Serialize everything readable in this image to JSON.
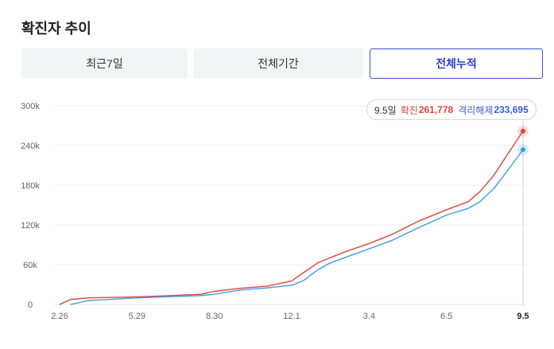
{
  "page_title": "확진자 추이",
  "tabs": [
    {
      "label": "최근7일",
      "active": false
    },
    {
      "label": "전체기간",
      "active": false
    },
    {
      "label": "전체누적",
      "active": true
    }
  ],
  "tooltip": {
    "date": "9.5일",
    "confirmed_label": "확진",
    "confirmed_value": "261,778",
    "released_label": "격리해제",
    "released_value": "233,695"
  },
  "colors": {
    "confirmed": "#e0453a",
    "released": "#3d9be8",
    "active_tab": "#2c3fc8",
    "tab_bg": "#f3f4f5"
  },
  "chart_data": {
    "type": "line",
    "title": "",
    "xlabel": "",
    "ylabel": "",
    "x_ticks": [
      "2.26",
      "5.29",
      "8.30",
      "12.1",
      "3.4",
      "6.5",
      "9.5"
    ],
    "y_ticks": [
      "0",
      "60k",
      "120k",
      "180k",
      "240k",
      "300k"
    ],
    "ylim": [
      0,
      300000
    ],
    "grid": true,
    "series": [
      {
        "name": "확진",
        "color": "#e0453a",
        "points": [
          [
            "2.26",
            0
          ],
          [
            "3.10",
            7500
          ],
          [
            "4.1",
            10000
          ],
          [
            "5.29",
            11500
          ],
          [
            "7.1",
            13000
          ],
          [
            "8.14",
            15500
          ],
          [
            "8.30",
            19800
          ],
          [
            "10.1",
            24500
          ],
          [
            "11.1",
            27500
          ],
          [
            "12.1",
            35500
          ],
          [
            "12.15",
            48000
          ],
          [
            "1.1",
            62500
          ],
          [
            "1.15",
            70000
          ],
          [
            "2.1",
            78500
          ],
          [
            "3.4",
            92000
          ],
          [
            "4.1",
            106000
          ],
          [
            "5.1",
            125000
          ],
          [
            "6.5",
            143000
          ],
          [
            "7.1",
            155000
          ],
          [
            "7.15",
            170000
          ],
          [
            "8.1",
            195000
          ],
          [
            "8.15",
            222000
          ],
          [
            "9.5",
            261778
          ]
        ]
      },
      {
        "name": "격리해제",
        "color": "#3d9be8",
        "points": [
          [
            "3.10",
            0
          ],
          [
            "4.1",
            6000
          ],
          [
            "5.29",
            10000
          ],
          [
            "7.1",
            11500
          ],
          [
            "8.14",
            13500
          ],
          [
            "8.30",
            15500
          ],
          [
            "10.1",
            22000
          ],
          [
            "11.1",
            25000
          ],
          [
            "12.1",
            29000
          ],
          [
            "12.15",
            36000
          ],
          [
            "1.1",
            52000
          ],
          [
            "1.15",
            62000
          ],
          [
            "2.1",
            70000
          ],
          [
            "3.4",
            84000
          ],
          [
            "4.1",
            97000
          ],
          [
            "5.1",
            115000
          ],
          [
            "6.5",
            135000
          ],
          [
            "7.1",
            145000
          ],
          [
            "7.15",
            155000
          ],
          [
            "8.1",
            175000
          ],
          [
            "8.15",
            198000
          ],
          [
            "9.5",
            233695
          ]
        ]
      }
    ]
  }
}
